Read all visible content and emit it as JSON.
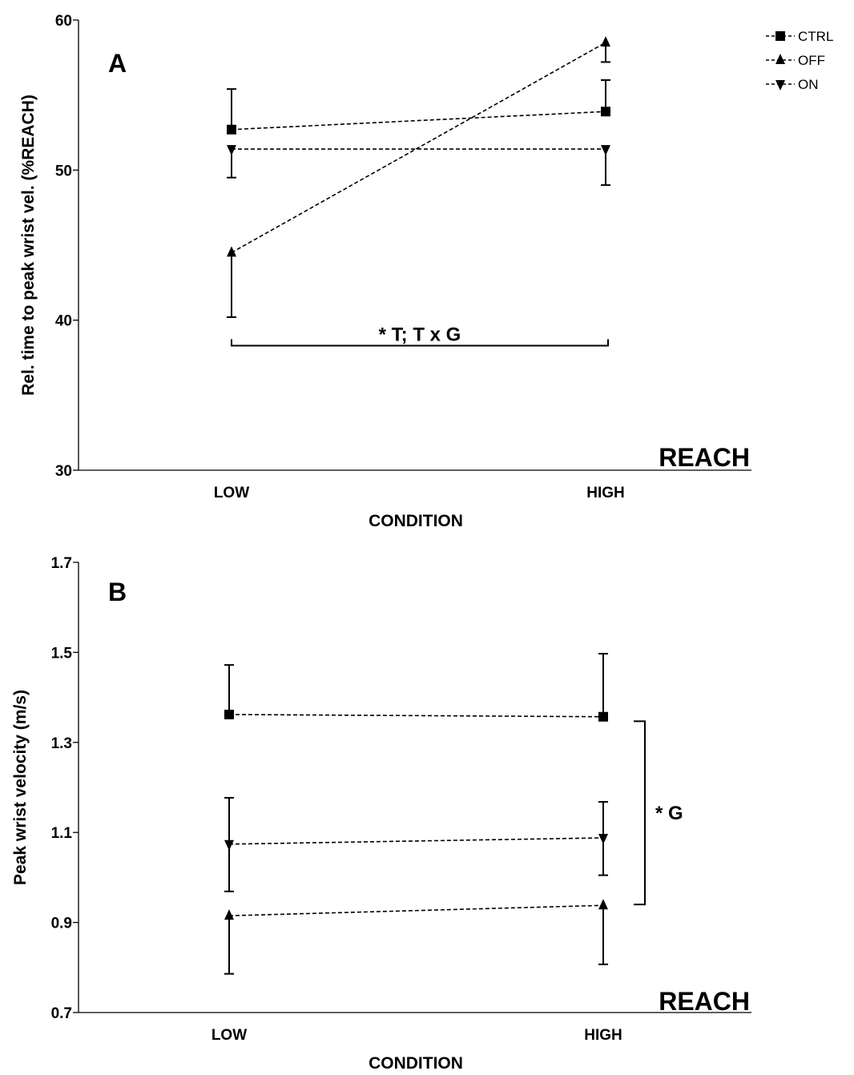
{
  "chart_data": [
    {
      "type": "line",
      "panel_label": "A",
      "corner_label": "REACH",
      "xlabel": "CONDITION",
      "ylabel": "Rel. time to peak wrist vel. (%REACH)",
      "categories": [
        "LOW",
        "HIGH"
      ],
      "ylim": [
        30,
        60
      ],
      "yticks": [
        "30",
        "40",
        "50",
        "60"
      ],
      "series": [
        {
          "name": "CTRL",
          "marker": "square",
          "values": [
            52.7,
            53.9
          ],
          "err_upper": [
            55.4,
            56.0
          ],
          "err_lower": [
            null,
            null
          ]
        },
        {
          "name": "OFF",
          "marker": "triangle-up",
          "values": [
            44.5,
            58.5
          ],
          "err_upper": [
            null,
            null
          ],
          "err_lower": [
            40.2,
            57.2
          ]
        },
        {
          "name": "ON",
          "marker": "triangle-down",
          "values": [
            51.4,
            51.4
          ],
          "err_upper": [
            null,
            null
          ],
          "err_lower": [
            49.5,
            49.0
          ]
        }
      ],
      "annotation": {
        "text": "* T; T x G",
        "type": "bracket-horizontal",
        "y": 38.3
      }
    },
    {
      "type": "line",
      "panel_label": "B",
      "corner_label": "REACH",
      "xlabel": "CONDITION",
      "ylabel": "Peak wrist velocity (m/s)",
      "categories": [
        "LOW",
        "HIGH"
      ],
      "ylim": [
        0.7,
        1.7
      ],
      "yticks": [
        "0.7",
        "0.9",
        "1.1",
        "1.3",
        "1.5",
        "1.7"
      ],
      "series": [
        {
          "name": "CTRL",
          "marker": "square",
          "values": [
            1.362,
            1.357
          ],
          "err_upper": [
            1.472,
            1.497
          ],
          "err_lower": [
            null,
            null
          ]
        },
        {
          "name": "ON",
          "marker": "triangle-down",
          "values": [
            1.074,
            1.088
          ],
          "err_upper": [
            1.177,
            1.168
          ],
          "err_lower": [
            0.969,
            1.005
          ]
        },
        {
          "name": "OFF",
          "marker": "triangle-up",
          "values": [
            0.915,
            0.938
          ],
          "err_upper": [
            null,
            null
          ],
          "err_lower": [
            0.786,
            0.807
          ]
        }
      ],
      "annotation": {
        "text": "* G",
        "type": "bracket-vertical",
        "y_range": [
          0.94,
          1.347
        ]
      }
    }
  ],
  "legend": {
    "items": [
      {
        "name": "CTRL",
        "marker": "square"
      },
      {
        "name": "OFF",
        "marker": "triangle-up"
      },
      {
        "name": "ON",
        "marker": "triangle-down"
      }
    ]
  }
}
